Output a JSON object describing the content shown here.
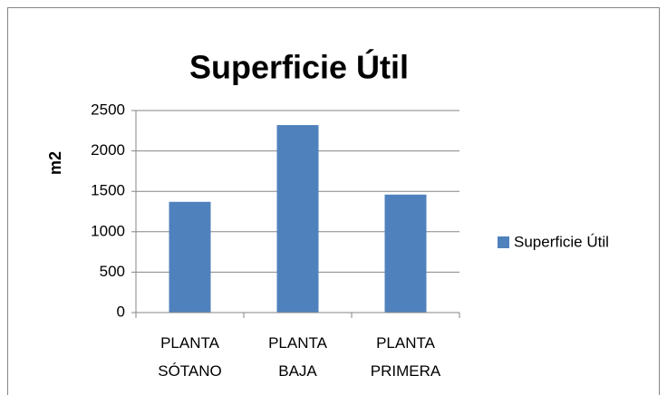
{
  "chart_data": {
    "type": "bar",
    "title": "Superficie Útil",
    "ylabel": "m2",
    "categories": [
      "PLANTA SÓTANO",
      "PLANTA BAJA",
      "PLANTA PRIMERA"
    ],
    "series": [
      {
        "name": "Superficie Útil",
        "color": "#4f81bd",
        "values": [
          1370,
          2320,
          1460
        ]
      }
    ],
    "ylim": [
      0,
      2500
    ],
    "yticks": [
      0,
      500,
      1000,
      1500,
      2000,
      2500
    ],
    "grid": true,
    "legend": "right"
  }
}
